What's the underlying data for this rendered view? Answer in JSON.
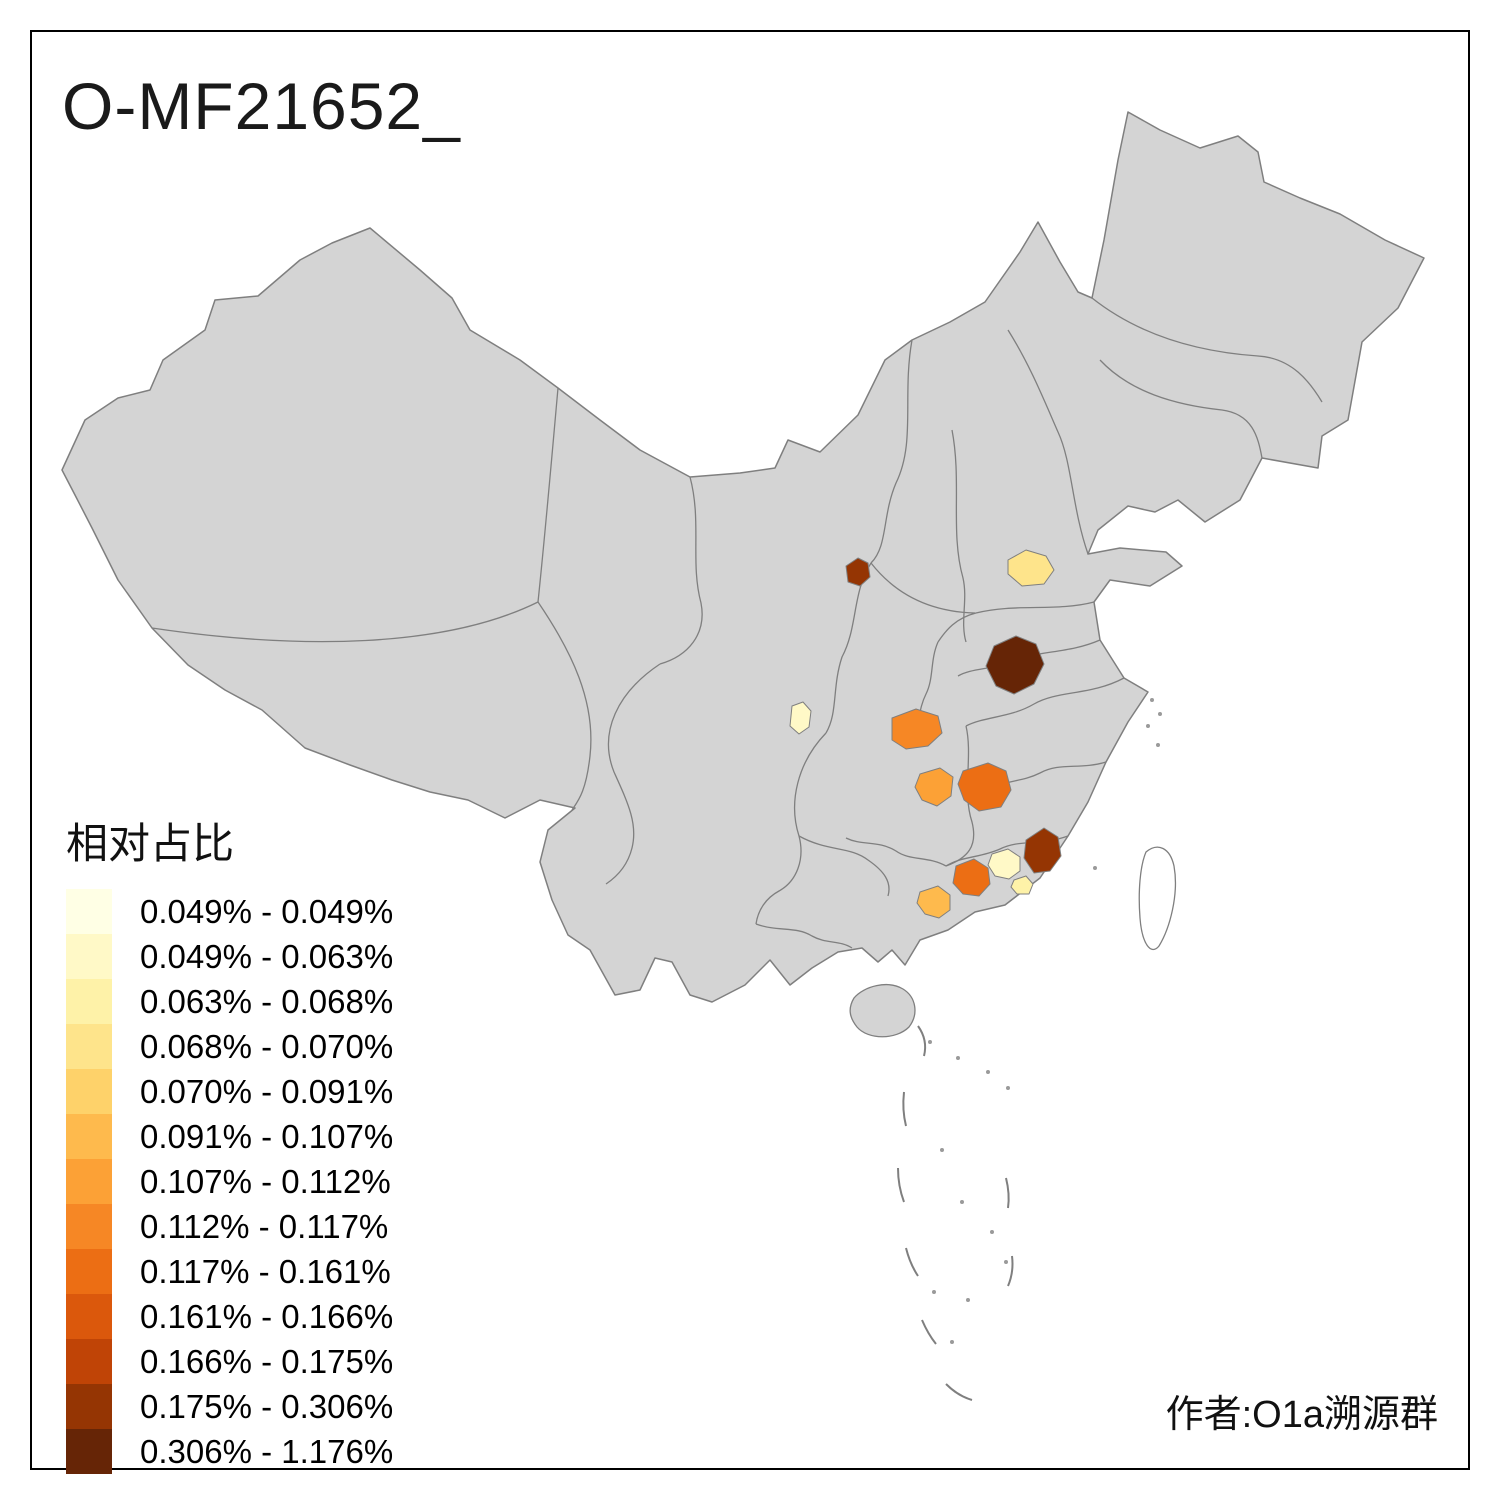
{
  "title": "O-MF21652_",
  "legend": {
    "title": "相对占比",
    "items": [
      {
        "label": "0.049% - 0.049%",
        "color": "#FFFFE5"
      },
      {
        "label": "0.049% - 0.063%",
        "color": "#FFF9C7"
      },
      {
        "label": "0.063% - 0.068%",
        "color": "#FEF2A8"
      },
      {
        "label": "0.068% - 0.070%",
        "color": "#FEE48B"
      },
      {
        "label": "0.070% - 0.091%",
        "color": "#FED26A"
      },
      {
        "label": "0.091% - 0.107%",
        "color": "#FEBA4D"
      },
      {
        "label": "0.107% - 0.112%",
        "color": "#FCA136"
      },
      {
        "label": "0.112% - 0.117%",
        "color": "#F68725"
      },
      {
        "label": "0.117% - 0.161%",
        "color": "#EC6E14"
      },
      {
        "label": "0.161% - 0.166%",
        "color": "#DB580C"
      },
      {
        "label": "0.166% - 0.175%",
        "color": "#C04406"
      },
      {
        "label": "0.175% - 0.306%",
        "color": "#953503"
      },
      {
        "label": "0.306% - 1.176%",
        "color": "#662506"
      }
    ]
  },
  "credit": "作者:O1a溯源群",
  "map": {
    "land_fill": "#D4D4D4",
    "boundary_color": "#7F7F7F",
    "background": "#FFFFFF",
    "regions": [
      {
        "id": "highlight-1",
        "color": "#953503"
      },
      {
        "id": "highlight-2",
        "color": "#FEE48B"
      },
      {
        "id": "highlight-3",
        "color": "#662506"
      },
      {
        "id": "highlight-4",
        "color": "#FFF9C7"
      },
      {
        "id": "highlight-5",
        "color": "#F68725"
      },
      {
        "id": "highlight-6",
        "color": "#FCA136"
      },
      {
        "id": "highlight-7",
        "color": "#EC6E14"
      },
      {
        "id": "highlight-8",
        "color": "#953503"
      },
      {
        "id": "highlight-9",
        "color": "#EC6E14"
      },
      {
        "id": "highlight-10",
        "color": "#FFF9C7"
      },
      {
        "id": "highlight-11",
        "color": "#FEF2A8"
      },
      {
        "id": "highlight-12",
        "color": "#FEBA4D"
      }
    ]
  }
}
